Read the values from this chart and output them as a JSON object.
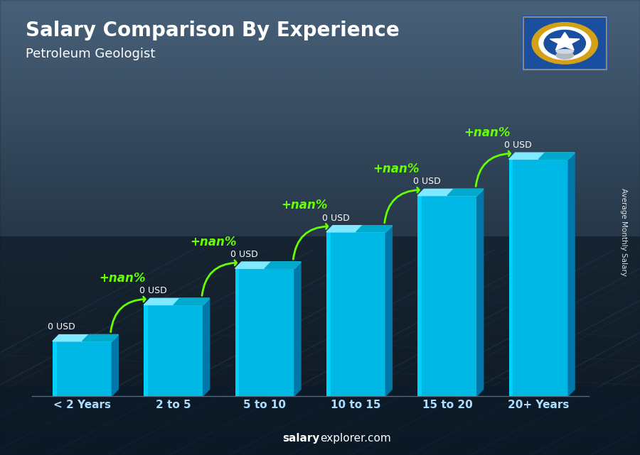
{
  "title": "Salary Comparison By Experience",
  "subtitle": "Petroleum Geologist",
  "categories": [
    "< 2 Years",
    "2 to 5",
    "5 to 10",
    "10 to 15",
    "15 to 20",
    "20+ Years"
  ],
  "values": [
    1.5,
    2.5,
    3.5,
    4.5,
    5.5,
    6.5
  ],
  "bar_color_face": "#00b8e6",
  "bar_color_left": "#00d4ff",
  "bar_color_dark": "#0077a8",
  "bar_color_top": "#80e8ff",
  "bar_color_top_dark": "#00aacc",
  "salaries": [
    "0 USD",
    "0 USD",
    "0 USD",
    "0 USD",
    "0 USD",
    "0 USD"
  ],
  "increments": [
    "+nan%",
    "+nan%",
    "+nan%",
    "+nan%",
    "+nan%"
  ],
  "title_color": "white",
  "subtitle_color": "white",
  "increment_color": "#66ff00",
  "salary_color": "white",
  "ylabel": "Average Monthly Salary",
  "footer_salary": "salary",
  "footer_rest": "explorer.com",
  "bg_top": "#6a8aaa",
  "bg_mid": "#3a5570",
  "bg_bot": "#1a2a3a",
  "ylim": [
    0,
    8.5
  ],
  "bar_width": 0.65,
  "n_bars": 6
}
